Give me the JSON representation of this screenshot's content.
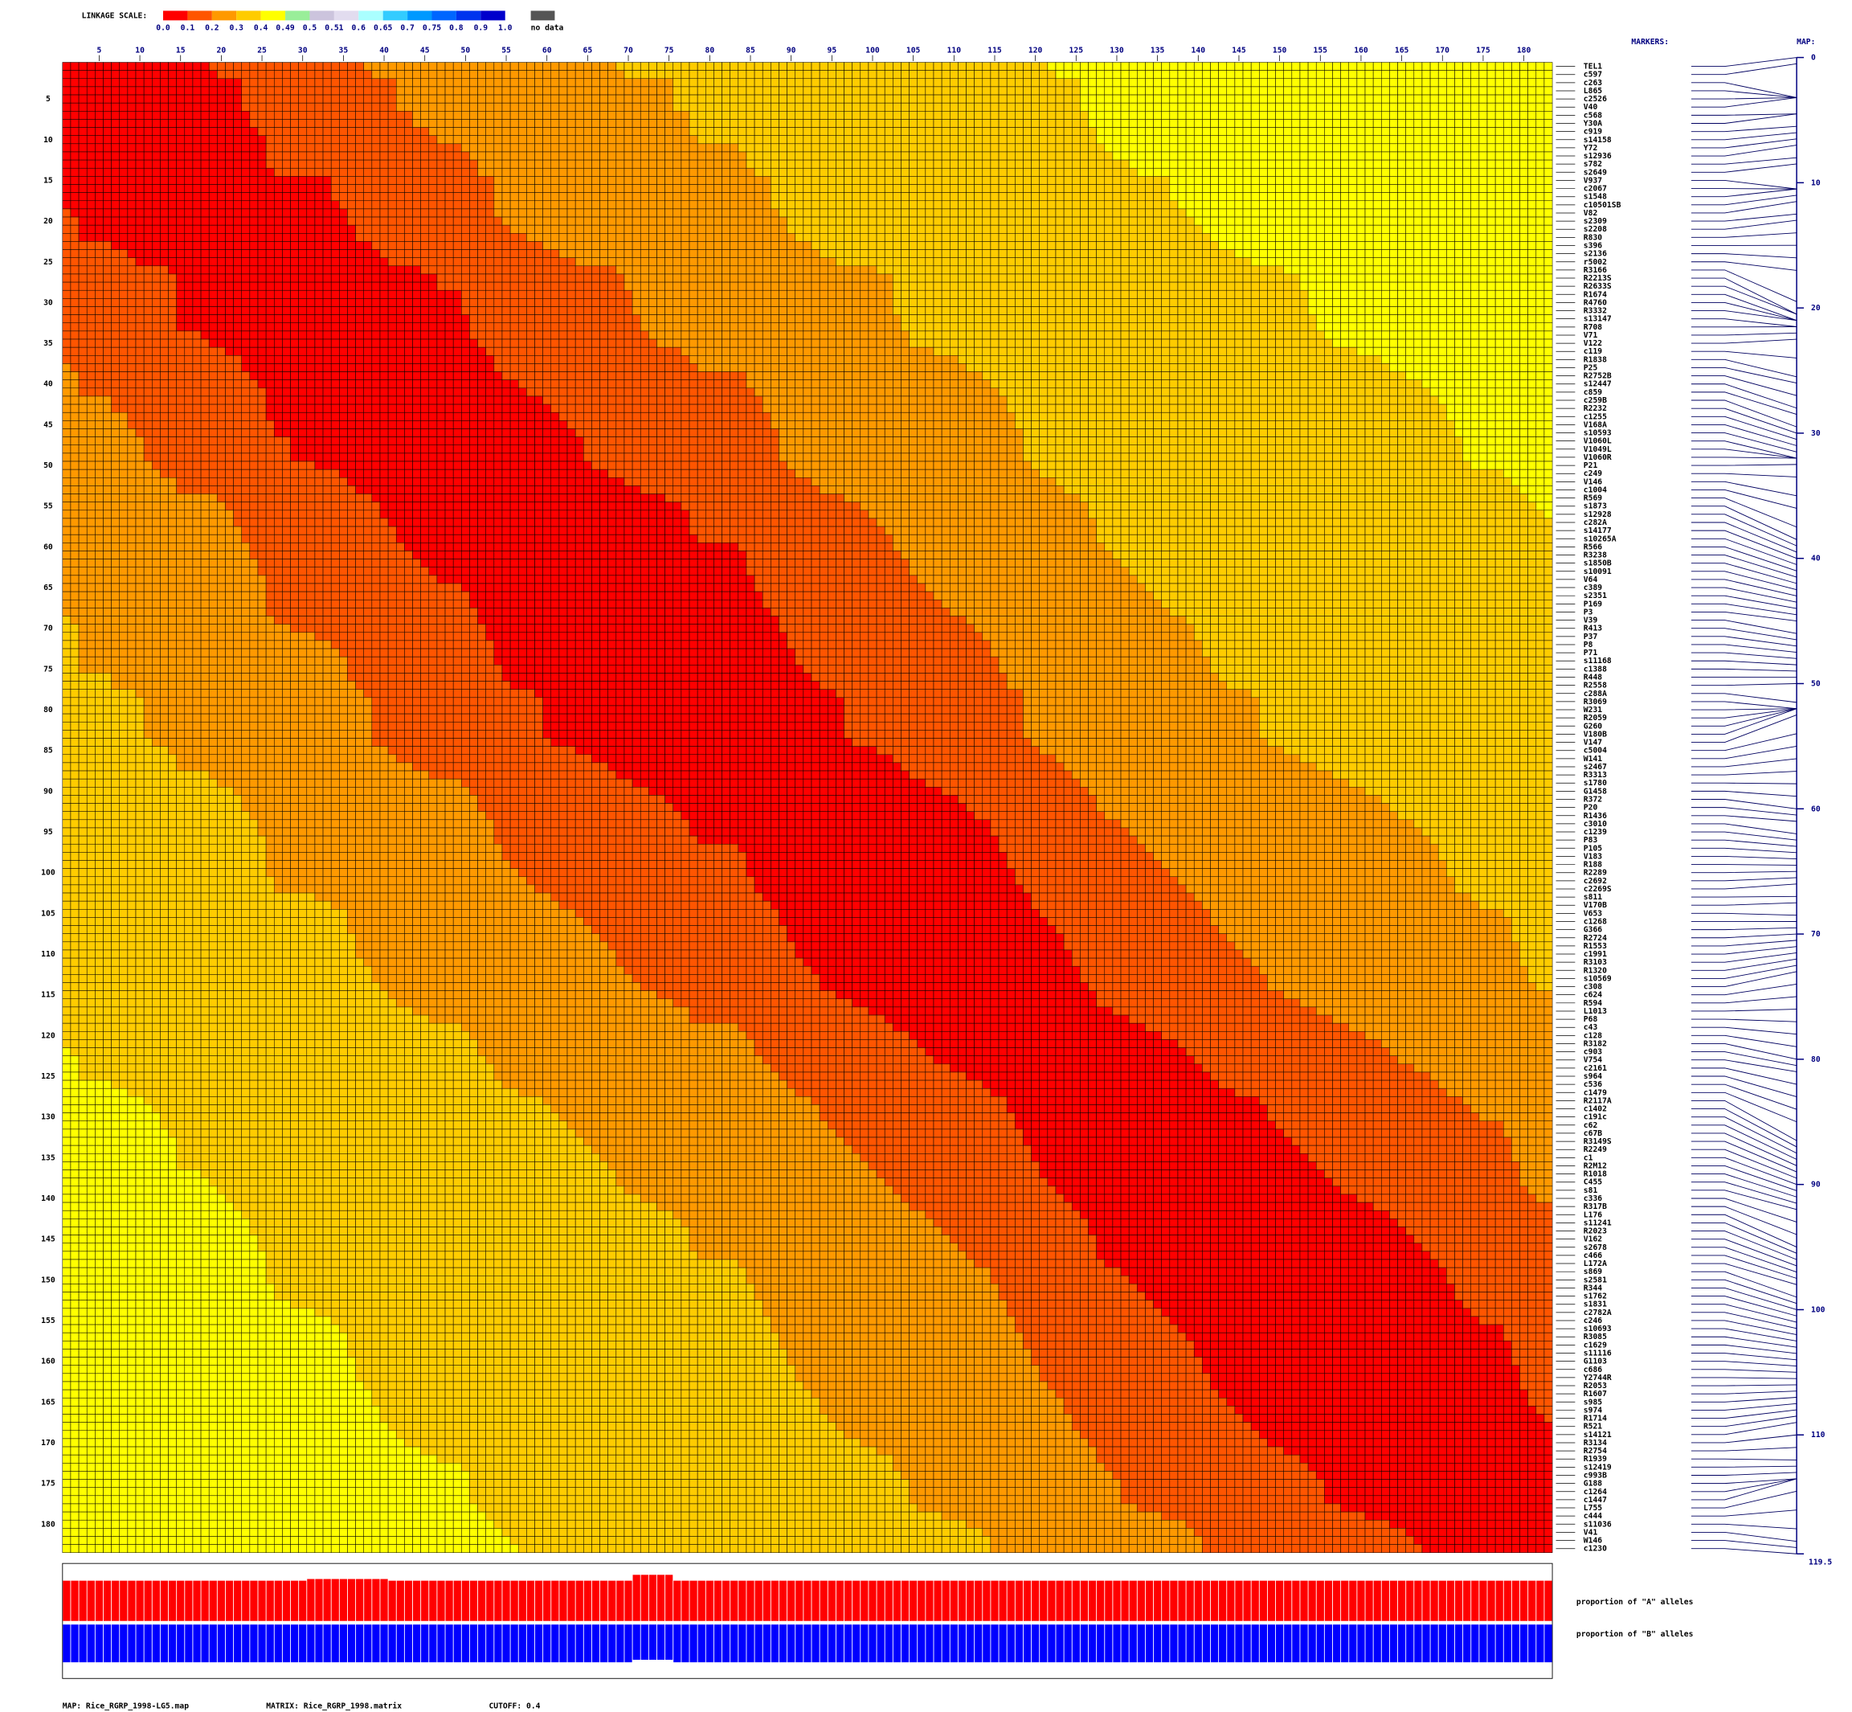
{
  "chart_data": {
    "type": "linkage_heatmap",
    "scale_title": "LINKAGE SCALE:",
    "scale": [
      {
        "value": 0,
        "label": "0.0"
      },
      0.1,
      0.2,
      0.3,
      0.4,
      0.49,
      0.5,
      0.51,
      0.6,
      0.65,
      0.7,
      0.75,
      0.8,
      0.9,
      {
        "value": 1,
        "label": "1.0"
      }
    ],
    "scale_colors": [
      "#ff0000",
      "#ff5500",
      "#ff9900",
      "#ffcc00",
      "#ffff00",
      "#99ee99",
      "#ccc4dd",
      "#e2dcef",
      "#aaffff",
      "#33ccff",
      "#0099ff",
      "#0066ff",
      "#0033ee",
      "#0000cc"
    ],
    "no_data_label": "no data",
    "no_data_color": "#555555",
    "markers_title": "MARKERS:",
    "map_title": "MAP:",
    "ticks": [
      5,
      10,
      15,
      20,
      25,
      30,
      35,
      40,
      45,
      50,
      55,
      60,
      65,
      70,
      75,
      80,
      85,
      90,
      95,
      100,
      105,
      110,
      115,
      120,
      125,
      130,
      135,
      140,
      145,
      150,
      155,
      160,
      165,
      170,
      175,
      180
    ],
    "maplim": [
      0,
      119.5
    ],
    "map_ticks": [
      0,
      10,
      20,
      30,
      40,
      50,
      60,
      70,
      80,
      90,
      100,
      110
    ],
    "map_end_label": "119.5",
    "markers": [
      "TEL1",
      "c597",
      "c263",
      "L865",
      "c2526",
      "V40",
      "c568",
      "Y30A",
      "c919",
      "s14158",
      "Y72",
      "s12936",
      "s782",
      "s2649",
      "V937",
      "c2067",
      "s1548",
      "c10501SB",
      "V82",
      "s2309",
      "s2208",
      "R830",
      "s396",
      "s2136",
      "r5002",
      "R3166",
      "R2213S",
      "R2633S",
      "R1674",
      "R4760",
      "R3332",
      "s13147",
      "R708",
      "V71",
      "V122",
      "c119",
      "R1838",
      "P25",
      "R2752B",
      "s12447",
      "c859",
      "c259B",
      "R2232",
      "c1255",
      "V168A",
      "s10593",
      "V1060L",
      "V1049L",
      "V1060R",
      "P21",
      "c249",
      "V146",
      "c1004",
      "R569",
      "s1873",
      "s12928",
      "c282A",
      "s14177",
      "s10265A",
      "R566",
      "R3238",
      "s1850B",
      "s10091",
      "V64",
      "c389",
      "s2351",
      "P169",
      "P3",
      "V39",
      "R413",
      "P37",
      "P8",
      "P71",
      "s11168",
      "c1388",
      "R448",
      "R2558",
      "c288A",
      "R3069",
      "W231",
      "R2059",
      "G260",
      "V180B",
      "V147",
      "c5004",
      "W141",
      "s2467",
      "R3313",
      "s1780",
      "G1458",
      "R372",
      "P20",
      "R1436",
      "c3010",
      "c1239",
      "P83",
      "P105",
      "V183",
      "R188",
      "R2289",
      "c2692",
      "c2269S",
      "s811",
      "V170B",
      "V653",
      "c1268",
      "G366",
      "R2724",
      "R1553",
      "c1991",
      "R3103",
      "R1320",
      "s10569",
      "c308",
      "c624",
      "R594",
      "L1013",
      "P68",
      "c43",
      "c128",
      "R3182",
      "c903",
      "V754",
      "c2161",
      "s964",
      "c536",
      "c1479",
      "R2117A",
      "c1402",
      "c191c",
      "c62",
      "c67B",
      "R3149S",
      "R2249",
      "c1",
      "R2M12",
      "R1018",
      "C455",
      "s81",
      "c336",
      "R317B",
      "L176",
      "s11241",
      "R2023",
      "V162",
      "s2678",
      "c466",
      "L172A",
      "s869",
      "s2581",
      "R344",
      "s1762",
      "s1831",
      "c2782A",
      "c246",
      "s10693",
      "R3085",
      "c1629",
      "s11116",
      "G1103",
      "c686",
      "Y2744R",
      "R2053",
      "R1607",
      "s985",
      "s974",
      "R1714",
      "R521",
      "s14121",
      "R3134",
      "R2754",
      "R1939",
      "s12419",
      "c993B",
      "G188",
      "c1264",
      "c1447",
      "L755",
      "c444",
      "s11036",
      "V41",
      "W146",
      "c1230"
    ],
    "positions": [
      0,
      0.5,
      3.2,
      3.2,
      3.2,
      3.2,
      4.5,
      4.5,
      5.5,
      6,
      6.5,
      7,
      8,
      8.5,
      10.5,
      10.5,
      10.5,
      11,
      11.5,
      12.5,
      13,
      14,
      15,
      16,
      17,
      19.5,
      20.5,
      20.5,
      21,
      21,
      21,
      21.5,
      21.5,
      22,
      22.5,
      24,
      25.5,
      26,
      27,
      28,
      28.5,
      29.5,
      30,
      30.5,
      31,
      31.5,
      32,
      32,
      32,
      32.5,
      33.5,
      35,
      36,
      37.5,
      38.5,
      39,
      39.5,
      40,
      40.5,
      41,
      41.5,
      42,
      42.5,
      43,
      43.5,
      44,
      44.5,
      45,
      46,
      46.5,
      47,
      47.5,
      48,
      48.5,
      49,
      49.5,
      50,
      51.5,
      52,
      52,
      52,
      52,
      52,
      52.5,
      54,
      55,
      56,
      57,
      58,
      59,
      60,
      60.5,
      61,
      62,
      62.5,
      63,
      63.5,
      64,
      64.5,
      65,
      65.5,
      66,
      67,
      67.5,
      68.5,
      69,
      69.5,
      70,
      70.5,
      71,
      71.5,
      72,
      72.5,
      73,
      74,
      75,
      76,
      77,
      78,
      79,
      80,
      80.5,
      81,
      82,
      83,
      84,
      85,
      86.5,
      87,
      87.5,
      88,
      88.5,
      89,
      89.5,
      90,
      90.5,
      91,
      91.5,
      92,
      93,
      94,
      95,
      95.5,
      96,
      96.5,
      97,
      97.5,
      98,
      99,
      99.5,
      100,
      100.5,
      101,
      101.5,
      102,
      102.5,
      103,
      103.5,
      104,
      104.5,
      105,
      105.5,
      106,
      106.5,
      107,
      107.5,
      108,
      108.5,
      109,
      110,
      111,
      112,
      112.5,
      113,
      113.5,
      113.5,
      113.5,
      114.5,
      116,
      117.5,
      118.5,
      119,
      119.5
    ],
    "a_label": "proportion of \"A\" alleles",
    "b_label": "proportion of \"B\" alleles",
    "a_color": "#ff0000",
    "b_color": "#0000ff",
    "proportion_a": [
      0.48,
      0.48,
      0.48,
      0.48,
      0.48,
      0.48,
      0.48,
      0.48,
      0.48,
      0.48,
      0.48,
      0.48,
      0.48,
      0.48,
      0.48,
      0.48,
      0.48,
      0.48,
      0.48,
      0.48,
      0.48,
      0.48,
      0.48,
      0.48,
      0.48,
      0.48,
      0.48,
      0.48,
      0.48,
      0.48,
      0.5,
      0.5,
      0.5,
      0.5,
      0.5,
      0.5,
      0.5,
      0.5,
      0.5,
      0.5,
      0.48,
      0.48,
      0.48,
      0.48,
      0.48,
      0.48,
      0.48,
      0.48,
      0.48,
      0.48,
      0.48,
      0.48,
      0.48,
      0.48,
      0.48,
      0.48,
      0.48,
      0.48,
      0.48,
      0.48,
      0.48,
      0.48,
      0.48,
      0.48,
      0.48,
      0.48,
      0.48,
      0.48,
      0.48,
      0.48,
      0.55,
      0.55,
      0.55,
      0.55,
      0.55,
      0.48,
      0.48,
      0.48,
      0.48,
      0.48,
      0.48,
      0.48,
      0.48,
      0.48,
      0.48,
      0.48,
      0.48,
      0.48,
      0.48,
      0.48,
      0.48,
      0.48,
      0.48,
      0.48,
      0.48,
      0.48,
      0.48,
      0.48,
      0.48,
      0.48,
      0.48,
      0.48,
      0.48,
      0.48,
      0.48,
      0.48,
      0.48,
      0.48,
      0.48,
      0.48,
      0.48,
      0.48,
      0.48,
      0.48,
      0.48,
      0.48,
      0.48,
      0.48,
      0.48,
      0.48,
      0.48,
      0.48,
      0.48,
      0.48,
      0.48,
      0.48,
      0.48,
      0.48,
      0.48,
      0.48,
      0.48,
      0.48,
      0.48,
      0.48,
      0.48,
      0.48,
      0.48,
      0.48,
      0.48,
      0.48,
      0.48,
      0.48,
      0.48,
      0.48,
      0.48,
      0.48,
      0.48,
      0.48,
      0.48,
      0.48,
      0.48,
      0.48,
      0.48,
      0.48,
      0.48,
      0.48,
      0.48,
      0.48,
      0.48,
      0.48,
      0.48,
      0.48,
      0.48,
      0.48,
      0.48,
      0.48,
      0.48,
      0.48,
      0.48,
      0.48,
      0.48,
      0.48,
      0.48,
      0.48,
      0.48,
      0.48,
      0.48,
      0.48,
      0.48,
      0.48,
      0.48,
      0.48,
      0.48
    ],
    "proportion_b": [
      0.45,
      0.45,
      0.45,
      0.45,
      0.45,
      0.45,
      0.45,
      0.45,
      0.45,
      0.45,
      0.45,
      0.45,
      0.45,
      0.45,
      0.45,
      0.45,
      0.45,
      0.45,
      0.45,
      0.45,
      0.45,
      0.45,
      0.45,
      0.45,
      0.45,
      0.45,
      0.45,
      0.45,
      0.45,
      0.45,
      0.45,
      0.45,
      0.45,
      0.45,
      0.45,
      0.45,
      0.45,
      0.45,
      0.45,
      0.45,
      0.45,
      0.45,
      0.45,
      0.45,
      0.45,
      0.45,
      0.45,
      0.45,
      0.45,
      0.45,
      0.45,
      0.45,
      0.45,
      0.45,
      0.45,
      0.45,
      0.45,
      0.45,
      0.45,
      0.45,
      0.45,
      0.45,
      0.45,
      0.45,
      0.45,
      0.45,
      0.45,
      0.45,
      0.45,
      0.45,
      0.42,
      0.42,
      0.42,
      0.42,
      0.42,
      0.45,
      0.45,
      0.45,
      0.45,
      0.45,
      0.45,
      0.45,
      0.45,
      0.45,
      0.45,
      0.45,
      0.45,
      0.45,
      0.45,
      0.45,
      0.45,
      0.45,
      0.45,
      0.45,
      0.45,
      0.45,
      0.45,
      0.45,
      0.45,
      0.45,
      0.45,
      0.45,
      0.45,
      0.45,
      0.45,
      0.45,
      0.45,
      0.45,
      0.45,
      0.45,
      0.45,
      0.45,
      0.45,
      0.45,
      0.45,
      0.45,
      0.45,
      0.45,
      0.45,
      0.45,
      0.45,
      0.45,
      0.45,
      0.45,
      0.45,
      0.45,
      0.45,
      0.45,
      0.45,
      0.45,
      0.45,
      0.45,
      0.45,
      0.45,
      0.45,
      0.45,
      0.45,
      0.45,
      0.45,
      0.45,
      0.45,
      0.45,
      0.45,
      0.45,
      0.45,
      0.45,
      0.45,
      0.45,
      0.45,
      0.45,
      0.45,
      0.45,
      0.45,
      0.45,
      0.45,
      0.45,
      0.45,
      0.45,
      0.45,
      0.45,
      0.45,
      0.45,
      0.45,
      0.45,
      0.45,
      0.45,
      0.45,
      0.45,
      0.45,
      0.45,
      0.45,
      0.45,
      0.45,
      0.45,
      0.45,
      0.45,
      0.45,
      0.45,
      0.45,
      0.45,
      0.45,
      0.45,
      0.45
    ],
    "map_file": "MAP: Rice_RGRP_1998-LG5.map",
    "matrix_file": "MATRIX: Rice_RGRP_1998.matrix",
    "cutoff": "CUTOFF: 0.4"
  }
}
